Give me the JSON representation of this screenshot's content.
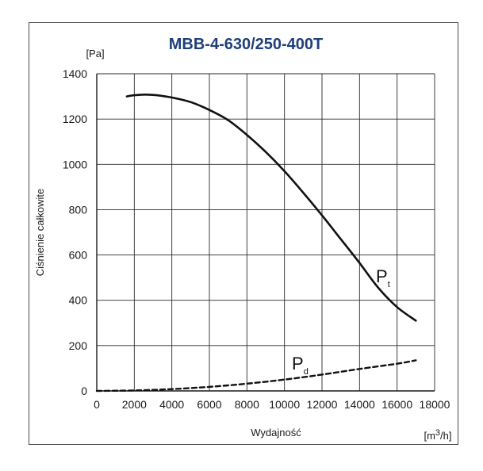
{
  "chart_data": {
    "type": "line",
    "title": "MBB-4-630/250-400T",
    "ylabel": "Ciśnienie całkowite",
    "yunit": "[Pa]",
    "xlabel": "Wydajność",
    "xunit_prefix": "[m",
    "xunit_sup": "3",
    "xunit_suffix": "/h]",
    "xlim": [
      0,
      18000
    ],
    "ylim": [
      0,
      1400
    ],
    "xticks": [
      0,
      2000,
      4000,
      6000,
      8000,
      10000,
      12000,
      14000,
      16000,
      18000
    ],
    "yticks": [
      0,
      200,
      400,
      600,
      800,
      1000,
      1200,
      1400
    ],
    "xtick_labels": [
      "0",
      "2000",
      "4000",
      "6000",
      "8000",
      "10000",
      "12000",
      "14000",
      "16000",
      "18000"
    ],
    "ytick_labels": [
      "0",
      "200",
      "400",
      "600",
      "800",
      "1000",
      "1200",
      "1400"
    ],
    "grid": true,
    "series": [
      {
        "name": "P",
        "sub": "t",
        "style": "solid",
        "color": "#111111",
        "x": [
          1600,
          2000,
          2600,
          3200,
          4000,
          5000,
          6000,
          7000,
          8000,
          9000,
          10000,
          11000,
          12000,
          13000,
          14000,
          15000,
          16000,
          17000
        ],
        "y": [
          1300,
          1305,
          1308,
          1305,
          1295,
          1275,
          1240,
          1195,
          1130,
          1055,
          970,
          875,
          775,
          670,
          565,
          455,
          370,
          310
        ]
      },
      {
        "name": "P",
        "sub": "d",
        "style": "dashed",
        "color": "#111111",
        "x": [
          0,
          2000,
          4000,
          6000,
          8000,
          10000,
          12000,
          14000,
          16000,
          17000
        ],
        "y": [
          0,
          2,
          8,
          18,
          32,
          50,
          72,
          97,
          120,
          135
        ]
      }
    ]
  }
}
